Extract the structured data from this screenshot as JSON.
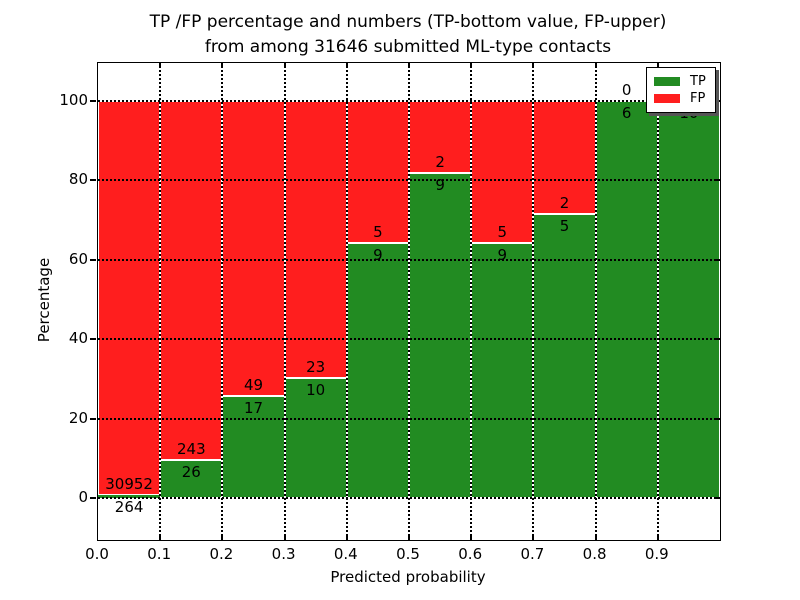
{
  "figure": {
    "title_line1": "TP /FP percentage and numbers (TP-bottom value, FP-upper)",
    "title_line2": "from among 31646 submitted ML-type contacts"
  },
  "chart_data": {
    "type": "bar",
    "stacked": true,
    "title": "TP /FP percentage and numbers (TP-bottom value, FP-upper) from among 31646 submitted ML-type contacts",
    "xlabel": "Predicted probability",
    "ylabel": "Percentage",
    "total_submitted": 31646,
    "annotation_scheme": "TP count printed below the green/red boundary, FP count printed above it",
    "x_tick_labels": [
      "0.0",
      "0.1",
      "0.2",
      "0.3",
      "0.4",
      "0.5",
      "0.6",
      "0.7",
      "0.8",
      "0.9"
    ],
    "y_ticks": [
      0,
      20,
      40,
      60,
      80,
      100
    ],
    "y_tick_labels": [
      "0",
      "20",
      "40",
      "60",
      "80",
      "100"
    ],
    "xlim": [
      0.0,
      1.0
    ],
    "ylim_visible": [
      -10.6,
      109.6
    ],
    "grid": "dotted",
    "colors": {
      "tp": "#228b22",
      "fp": "#ff1e1e",
      "grid": "#000000",
      "background": "#ffffff"
    },
    "legend": {
      "position": "upper right",
      "items": [
        {
          "label": "TP",
          "color": "#228b22"
        },
        {
          "label": "FP",
          "color": "#ff1e1e"
        }
      ]
    },
    "bins": [
      {
        "x_range": [
          0.0,
          0.1
        ],
        "tp_count": 264,
        "fp_count": 30952,
        "tp_pct": 0.85,
        "fp_pct": 99.15
      },
      {
        "x_range": [
          0.1,
          0.2
        ],
        "tp_count": 26,
        "fp_count": 243,
        "tp_pct": 9.67,
        "fp_pct": 90.33
      },
      {
        "x_range": [
          0.2,
          0.3
        ],
        "tp_count": 17,
        "fp_count": 49,
        "tp_pct": 25.76,
        "fp_pct": 74.24
      },
      {
        "x_range": [
          0.3,
          0.4
        ],
        "tp_count": 10,
        "fp_count": 23,
        "tp_pct": 30.3,
        "fp_pct": 69.7
      },
      {
        "x_range": [
          0.4,
          0.5
        ],
        "tp_count": 9,
        "fp_count": 5,
        "tp_pct": 64.29,
        "fp_pct": 35.71
      },
      {
        "x_range": [
          0.5,
          0.6
        ],
        "tp_count": 9,
        "fp_count": 2,
        "tp_pct": 81.82,
        "fp_pct": 18.18
      },
      {
        "x_range": [
          0.6,
          0.7
        ],
        "tp_count": 9,
        "fp_count": 5,
        "tp_pct": 64.29,
        "fp_pct": 35.71
      },
      {
        "x_range": [
          0.7,
          0.8
        ],
        "tp_count": 5,
        "fp_count": 2,
        "tp_pct": 71.43,
        "fp_pct": 28.57
      },
      {
        "x_range": [
          0.8,
          0.9
        ],
        "tp_count": 6,
        "fp_count": 0,
        "tp_pct": 100,
        "fp_pct": 0
      },
      {
        "x_range": [
          0.9,
          1.0
        ],
        "tp_count": 10,
        "fp_count": 0,
        "tp_pct": 100,
        "fp_pct": 0,
        "fp_label_occluded_by_legend": true
      }
    ]
  }
}
